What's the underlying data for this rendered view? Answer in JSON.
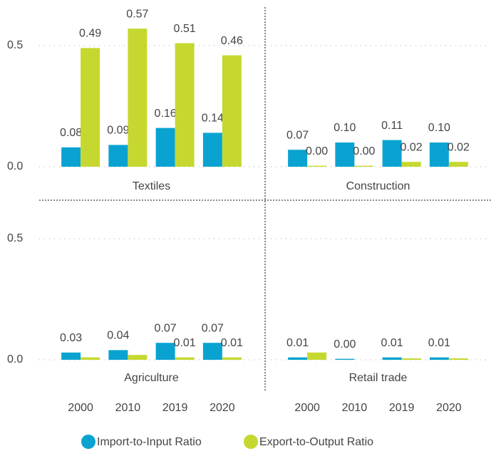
{
  "chart_data": [
    {
      "type": "bar",
      "title": "Textiles",
      "ylim": [
        0,
        0.65
      ],
      "yticks": [
        {
          "value": 0,
          "label": "0.0"
        },
        {
          "value": 0.5,
          "label": "0.5"
        }
      ],
      "series": [
        {
          "name": "Import-to-Input Ratio",
          "color": "#0aa3d1",
          "values": [
            0.08,
            0.09,
            0.16,
            0.14
          ],
          "value_labels": [
            "0.08",
            "0.09",
            "0.16",
            "0.14"
          ]
        },
        {
          "name": "Export-to-Output Ratio",
          "color": "#c6d82f",
          "values": [
            0.49,
            0.57,
            0.51,
            0.46
          ],
          "value_labels": [
            "0.49",
            "0.57",
            "0.51",
            "0.46"
          ]
        }
      ]
    },
    {
      "type": "bar",
      "title": "Construction",
      "ylim": [
        0,
        0.65
      ],
      "series": [
        {
          "values": [
            0.07,
            0.1,
            0.11,
            0.1
          ],
          "value_labels": [
            "0.07",
            "0.10",
            "0.11",
            "0.10"
          ]
        },
        {
          "values": [
            0.004,
            0.004,
            0.02,
            0.02
          ],
          "value_labels": [
            "0.00",
            "0.00",
            "0.02",
            "0.02"
          ]
        }
      ]
    },
    {
      "type": "bar",
      "title": "Agriculture",
      "ylim": [
        0,
        0.65
      ],
      "categories": [
        "2000",
        "2010",
        "2019",
        "2020"
      ],
      "yticks": [
        {
          "value": 0,
          "label": "0.0"
        },
        {
          "value": 0.5,
          "label": "0.5"
        }
      ],
      "series": [
        {
          "values": [
            0.03,
            0.04,
            0.07,
            0.07
          ],
          "value_labels": [
            "0.03",
            "0.04",
            "0.07",
            "0.07"
          ]
        },
        {
          "values": [
            0.01,
            0.02,
            0.01,
            0.01
          ],
          "value_labels": [
            null,
            null,
            "0.01",
            "0.01"
          ]
        }
      ]
    },
    {
      "type": "bar",
      "title": "Retail trade",
      "ylim": [
        0,
        0.65
      ],
      "categories": [
        "2000",
        "2010",
        "2019",
        "2020"
      ],
      "series": [
        {
          "values": [
            0.01,
            0.004,
            0.01,
            0.01
          ],
          "value_labels": [
            "0.01",
            "0.00",
            "0.01",
            "0.01"
          ]
        },
        {
          "values": [
            0.03,
            0,
            0.006,
            0.006
          ],
          "value_labels": [
            null,
            null,
            null,
            null
          ]
        }
      ]
    }
  ]
}
